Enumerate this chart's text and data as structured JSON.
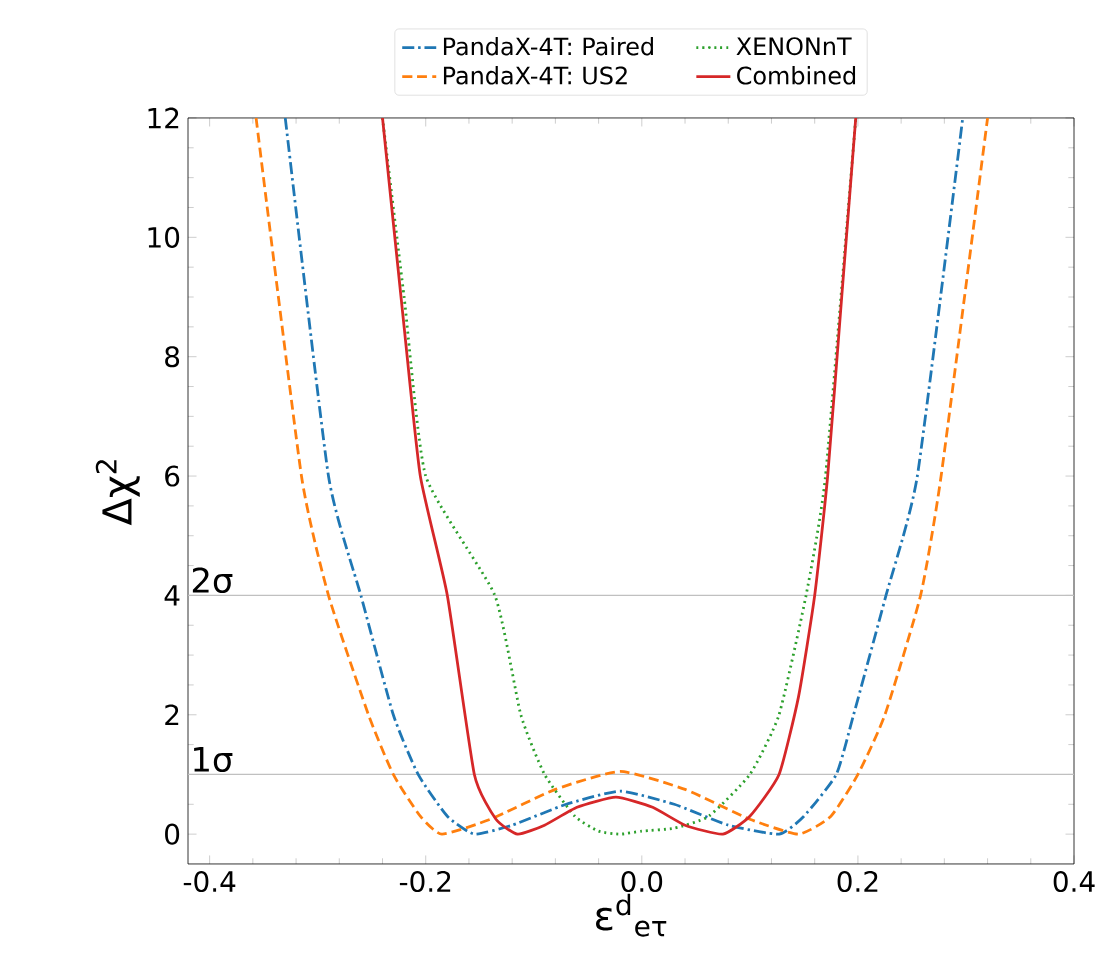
{
  "chart_data": {
    "type": "line",
    "xlabel": "ε$^{d}$$_{eτ}$",
    "ylabel": "Δχ$^{2}$",
    "xlim": [
      -0.42,
      0.4
    ],
    "ylim": [
      -0.5,
      12
    ],
    "xticks": [
      -0.4,
      -0.2,
      {
        "value": 0,
        "label": "0.0"
      },
      0.2,
      0.4
    ],
    "yticks": [
      0,
      2,
      4,
      6,
      8,
      10,
      12
    ],
    "legend": "top",
    "grid": false,
    "marker": "none",
    "ref_lines": [
      {
        "axis": "y",
        "value": 1,
        "label": "1σ",
        "color": "#c0c0c0"
      },
      {
        "axis": "y",
        "value": 4,
        "label": "2σ",
        "color": "#c0c0c0"
      }
    ],
    "series": [
      {
        "name": "PandaX-4T: Paired",
        "color": "#1f77b4",
        "line_style": "dashdot",
        "x": [
          -0.33,
          -0.29,
          -0.26,
          -0.23,
          -0.207,
          -0.18,
          -0.155,
          -0.12,
          -0.07,
          -0.02,
          0.03,
          0.08,
          0.127,
          0.15,
          0.18,
          0.196,
          0.226,
          0.255,
          0.297
        ],
        "values": [
          12,
          6,
          4,
          2,
          1,
          0.3,
          0,
          0.15,
          0.5,
          0.72,
          0.5,
          0.15,
          0,
          0.3,
          1,
          2,
          4,
          6,
          12
        ]
      },
      {
        "name": "PandaX-4T: US2",
        "color": "#ff7f0e",
        "line_style": "dashed",
        "x": [
          -0.357,
          -0.315,
          -0.29,
          -0.253,
          -0.23,
          -0.205,
          -0.185,
          -0.14,
          -0.08,
          -0.02,
          0.04,
          0.1,
          0.145,
          0.175,
          0.2,
          0.225,
          0.258,
          0.277,
          0.32
        ],
        "values": [
          12,
          6,
          4,
          2,
          1,
          0.3,
          0,
          0.25,
          0.75,
          1.05,
          0.75,
          0.25,
          0,
          0.3,
          1,
          2,
          4,
          6,
          12
        ]
      },
      {
        "name": "XENONnT",
        "color": "#2ca02c",
        "line_style": "dotted",
        "x": [
          -0.24,
          -0.22,
          -0.2,
          -0.136,
          -0.112,
          -0.09,
          -0.062,
          -0.04,
          -0.02,
          0.0,
          0.03,
          0.062,
          0.1,
          0.127,
          0.152,
          0.17,
          0.185,
          0.198
        ],
        "values": [
          12,
          9,
          6,
          4,
          2,
          1,
          0.3,
          0.05,
          0,
          0.05,
          0.1,
          0.3,
          1,
          2,
          4,
          6,
          null,
          12
        ]
      },
      {
        "name": "Combined",
        "color": "#d62728",
        "line_style": "solid",
        "x": [
          -0.24,
          -0.22,
          -0.205,
          -0.18,
          -0.155,
          -0.135,
          -0.115,
          -0.09,
          -0.06,
          -0.024,
          0.01,
          0.04,
          0.075,
          0.1,
          0.127,
          0.145,
          0.16,
          0.172,
          0.185,
          0.198
        ],
        "values": [
          12,
          8.5,
          6,
          4,
          1,
          0.25,
          0,
          0.15,
          0.45,
          0.62,
          0.45,
          0.15,
          0,
          0.3,
          1,
          2.3,
          4,
          6,
          9,
          12
        ]
      }
    ]
  }
}
